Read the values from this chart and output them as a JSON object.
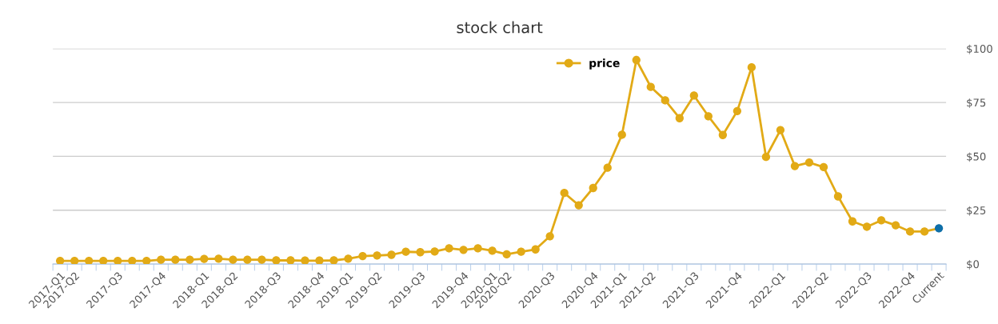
{
  "chart_data": {
    "type": "line",
    "title": "stock chart",
    "categories": [
      "2017-Q1",
      "2017-Q2",
      null,
      null,
      "2017-Q3",
      null,
      null,
      "2017-Q4",
      null,
      null,
      "2018-Q1",
      null,
      "2018-Q2",
      null,
      null,
      "2018-Q3",
      null,
      null,
      "2018-Q4",
      null,
      "2019-Q1",
      null,
      "2019-Q2",
      null,
      null,
      "2019-Q3",
      null,
      null,
      "2019-Q4",
      null,
      "2020-Q1",
      "2020-Q2",
      null,
      null,
      "2020-Q3",
      null,
      null,
      "2020-Q4",
      null,
      "2021-Q1",
      null,
      "2021-Q2",
      null,
      null,
      "2021-Q3",
      null,
      null,
      "2021-Q4",
      null,
      null,
      "2022-Q1",
      null,
      null,
      "2022-Q2",
      null,
      null,
      "2022-Q3",
      null,
      null,
      "2022-Q4",
      null,
      "Current"
    ],
    "series": [
      {
        "name": "price",
        "color": "#e2aa16",
        "colors": [
          "#e2aa16",
          "#e2aa16",
          "#e2aa16",
          "#e2aa16",
          "#e2aa16",
          "#e2aa16",
          "#e2aa16",
          "#e2aa16",
          "#e2aa16",
          "#e2aa16",
          "#e2aa16",
          "#e2aa16",
          "#e2aa16",
          "#e2aa16",
          "#e2aa16",
          "#e2aa16",
          "#e2aa16",
          "#e2aa16",
          "#e2aa16",
          "#e2aa16",
          "#e2aa16",
          "#e2aa16",
          "#e2aa16",
          "#e2aa16",
          "#e2aa16",
          "#e2aa16",
          "#e2aa16",
          "#e2aa16",
          "#e2aa16",
          "#e2aa16",
          "#e2aa16",
          "#e2aa16",
          "#e2aa16",
          "#e2aa16",
          "#e2aa16",
          "#e2aa16",
          "#e2aa16",
          "#e2aa16",
          "#e2aa16",
          "#e2aa16",
          "#e2aa16",
          "#e2aa16",
          "#e2aa16",
          "#e2aa16",
          "#e2aa16",
          "#e2aa16",
          "#e2aa16",
          "#e2aa16",
          "#e2aa16",
          "#e2aa16",
          "#e2aa16",
          "#e2aa16",
          "#e2aa16",
          "#e2aa16",
          "#e2aa16",
          "#e2aa16",
          "#e2aa16",
          "#e2aa16",
          "#e2aa16",
          "#e2aa16",
          "#e2aa16",
          "#0f6fa8"
        ],
        "values": [
          1.5,
          1.5,
          1.5,
          1.5,
          1.5,
          1.5,
          1.5,
          2.0,
          2.0,
          2.0,
          2.4,
          2.5,
          2.0,
          2.0,
          2.0,
          1.7,
          1.7,
          1.6,
          1.6,
          1.7,
          2.5,
          3.7,
          4.0,
          4.3,
          5.7,
          5.5,
          5.8,
          7.3,
          6.6,
          7.3,
          6.2,
          4.5,
          5.7,
          6.8,
          12.9,
          33.0,
          27.3,
          35.3,
          44.7,
          60.0,
          94.7,
          82.2,
          76.0,
          67.7,
          78.2,
          68.6,
          59.9,
          71.0,
          91.3,
          49.7,
          62.2,
          45.5,
          47.1,
          45.0,
          31.4,
          19.8,
          17.3,
          20.3,
          18.0,
          15.1,
          15.1,
          16.6
        ]
      }
    ],
    "ylim": [
      0,
      100
    ],
    "yticks": [
      {
        "value": 0,
        "label": "$0"
      },
      {
        "value": 25,
        "label": "$25"
      },
      {
        "value": 50,
        "label": "$50"
      },
      {
        "value": 75,
        "label": "$75"
      },
      {
        "value": 100,
        "label": "$100"
      }
    ],
    "grid": "y",
    "legend": "top",
    "marker": "circle",
    "line_style": "solid"
  }
}
